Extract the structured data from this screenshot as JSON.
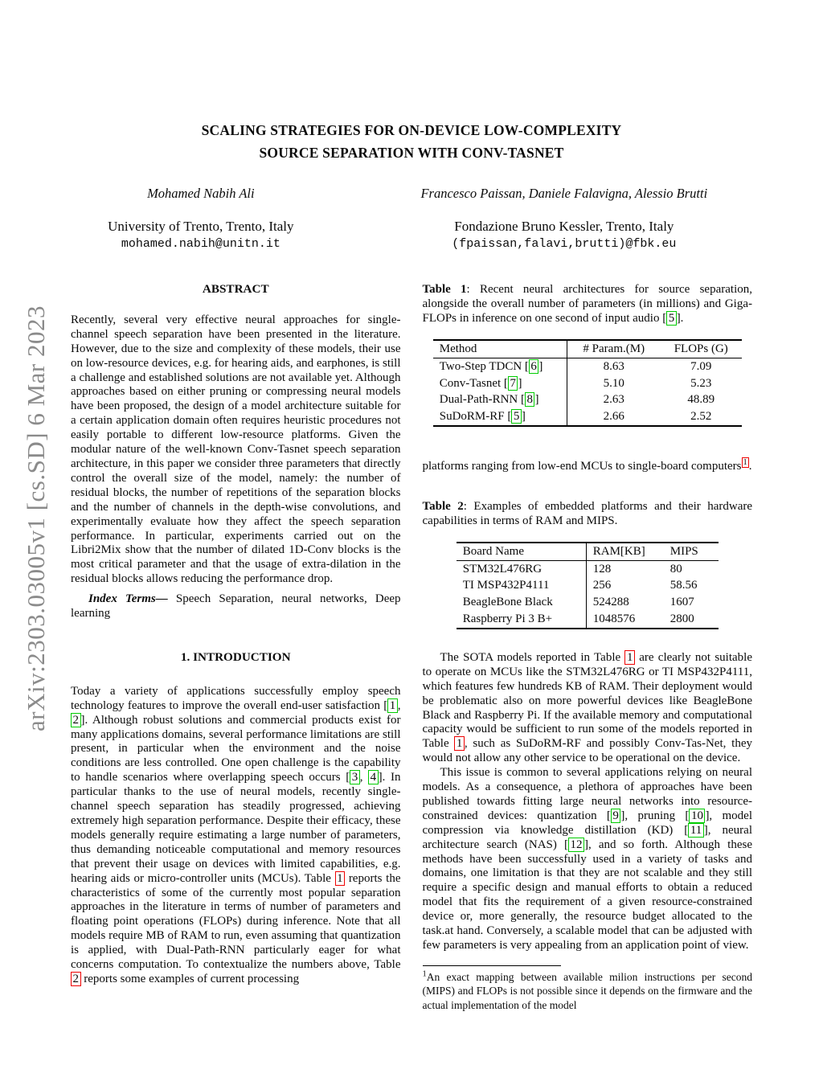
{
  "watermark": "arXiv:2303.03005v1  [cs.SD]  6 Mar 2023",
  "title": {
    "line1": "SCALING STRATEGIES FOR ON-DEVICE LOW-COMPLEXITY",
    "line2": "SOURCE SEPARATION WITH CONV-TASNET"
  },
  "authors": {
    "left": {
      "name": "Mohamed Nabih Ali",
      "affiliation": "University of Trento, Trento, Italy",
      "email": "mohamed.nabih@unitn.it"
    },
    "right": {
      "name": "Francesco Paissan, Daniele Falavigna, Alessio Brutti",
      "affiliation": "Fondazione Bruno Kessler, Trento, Italy",
      "email": "(fpaissan,falavi,brutti)@fbk.eu"
    }
  },
  "abstract": {
    "heading": "ABSTRACT",
    "body": "Recently, several very effective neural approaches for single-channel speech separation have been presented in the literature. However, due to the size and complexity of these models, their use on low-resource devices, e.g. for hearing aids, and earphones, is still a challenge and established solutions are not available yet. Although approaches based on either pruning or compressing neural models have been proposed, the design of a model architecture suitable for a certain application domain often requires heuristic procedures not easily portable to different low-resource platforms. Given the modular nature of the well-known Conv-Tasnet speech separation architecture, in this paper we consider three parameters that directly control the overall size of the model, namely: the number of residual blocks, the number of repetitions of the separation blocks and the number of channels in the depth-wise convolutions, and experimentally evaluate how they affect the speech separation performance. In particular, experiments carried out on the Libri2Mix show that the number of dilated 1D-Conv blocks is the most critical parameter and that the usage of extra-dilation in the residual blocks allows reducing the performance drop.",
    "index_terms": [
      {
        "cls": "bi",
        "t": "Index Terms—"
      },
      {
        "t": " Speech Separation, neural networks, Deep learning"
      }
    ]
  },
  "sections": {
    "intro_heading": "1.  INTRODUCTION"
  },
  "paragraphs": {
    "intro": [
      {
        "t": "Today a variety of applications successfully employ speech technology features to improve the overall end-user satisfaction ["
      },
      {
        "box": "green",
        "t": "1"
      },
      {
        "t": ", "
      },
      {
        "box": "green",
        "t": "2"
      },
      {
        "t": "]. Although robust solutions and commercial products exist for many applications domains, several performance limitations are still present, in particular when the environment and the noise conditions are less controlled. One open challenge is the capability to handle scenarios where overlapping speech occurs ["
      },
      {
        "box": "green",
        "t": "3"
      },
      {
        "t": ", "
      },
      {
        "box": "green",
        "t": "4"
      },
      {
        "t": "]. In particular thanks to the use of neural models, recently single-channel speech separation has steadily progressed, achieving extremely high separation performance. Despite their efficacy, these models generally require estimating a large number of parameters, thus demanding noticeable computational and memory resources that prevent their usage on devices with limited capabilities, e.g. hearing aids or micro-controller units (MCUs). Table "
      },
      {
        "box": "red",
        "t": "1"
      },
      {
        "t": " reports the characteristics of some of the currently most popular separation approaches in the literature in terms of number of parameters and floating point operations (FLOPs) during inference. Note that all models require MB of RAM to run, even assuming that quantization is applied, with Dual-Path-RNN particularly eager for what concerns computation. To contextualize the numbers above, Table "
      },
      {
        "box": "red",
        "t": "2"
      },
      {
        "t": " reports some examples of current processing"
      }
    ],
    "platforms": [
      {
        "t": "platforms ranging from low-end MCUs to single-board computers"
      },
      {
        "box": "red",
        "t": "1",
        "sup": true
      },
      {
        "t": "."
      }
    ],
    "sota": [
      {
        "t": "The SOTA models reported in Table "
      },
      {
        "box": "red",
        "t": "1"
      },
      {
        "t": " are clearly not suitable to operate on MCUs like the STM32L476RG or TI MSP432P4111, which features few hundreds KB of RAM. Their deployment would be problematic also on more powerful devices like BeagleBone Black and Raspberry Pi. If the available memory and computational capacity would be sufficient to run some of the models reported in Table "
      },
      {
        "box": "red",
        "t": "1"
      },
      {
        "t": ", such as SuDoRM-RF and possibly Conv-Tas-Net, they would not allow any other service to be operational on the device."
      }
    ],
    "issue": [
      {
        "t": "This issue is common to several applications relying on neural models.  As a consequence, a plethora of approaches have been published towards fitting large neural networks into resource-constrained devices:  quantization ["
      },
      {
        "box": "green",
        "t": "9"
      },
      {
        "t": "], pruning ["
      },
      {
        "box": "green",
        "t": "10"
      },
      {
        "t": "], model compression via knowledge distillation (KD) ["
      },
      {
        "box": "green",
        "t": "11"
      },
      {
        "t": "], neural architecture search (NAS) ["
      },
      {
        "box": "green",
        "t": "12"
      },
      {
        "t": "], and so forth. Although these methods have been successfully used in a variety of tasks and domains, one limitation is that they are not scalable and they still require a specific design and manual efforts to obtain a reduced model that fits the requirement of a given resource-constrained device or, more generally, the resource budget allocated to the task.at hand.  Conversely, a scalable model that can be adjusted with few parameters is very appealing from an application point of view."
      }
    ]
  },
  "tables": {
    "table1": {
      "caption": [
        {
          "cls": "b",
          "t": "Table 1"
        },
        {
          "t": ": Recent neural architectures for source separation, alongside the overall number of parameters (in millions) and Giga-FLOPs in inference on one second of input audio ["
        },
        {
          "box": "green",
          "t": "5"
        },
        {
          "t": "]."
        }
      ],
      "headers": [
        "Method",
        "# Param.(M)",
        "FLOPs (G)"
      ],
      "rows": [
        [
          [
            {
              "t": "Two-Step TDCN ["
            },
            {
              "box": "green",
              "t": "6"
            },
            {
              "t": "]"
            }
          ],
          "8.63",
          "7.09"
        ],
        [
          [
            {
              "t": "Conv-Tasnet ["
            },
            {
              "box": "green",
              "t": "7"
            },
            {
              "t": "]"
            }
          ],
          "5.10",
          "5.23"
        ],
        [
          [
            {
              "t": "Dual-Path-RNN ["
            },
            {
              "box": "green",
              "t": "8"
            },
            {
              "t": "]"
            }
          ],
          "2.63",
          "48.89"
        ],
        [
          [
            {
              "t": "SuDoRM-RF ["
            },
            {
              "box": "green",
              "t": "5"
            },
            {
              "t": "]"
            }
          ],
          "2.66",
          "2.52"
        ]
      ]
    },
    "table2": {
      "caption": [
        {
          "cls": "b",
          "t": "Table 2"
        },
        {
          "t": ": Examples of embedded platforms and their hardware capabilities in terms of RAM and MIPS."
        }
      ],
      "headers": [
        "Board Name",
        "RAM[KB]",
        "MIPS"
      ],
      "rows": [
        [
          "STM32L476RG",
          "128",
          "80"
        ],
        [
          "TI MSP432P4111",
          "256",
          "58.56"
        ],
        [
          "BeagleBone Black",
          "524288",
          "1607"
        ],
        [
          "Raspberry Pi 3 B+",
          "1048576",
          "2800"
        ]
      ]
    }
  },
  "footnote": {
    "segments": [
      {
        "cls": "sup",
        "t": "1"
      },
      {
        "t": "An exact mapping between available milion instructions per second (MIPS) and FLOPs is not possible since it depends on the firmware and the actual implementation of the model"
      }
    ]
  },
  "colors": {
    "citation_green": "#00cc00",
    "reference_red": "#ee0000",
    "watermark_gray": "#8b8b8b"
  }
}
